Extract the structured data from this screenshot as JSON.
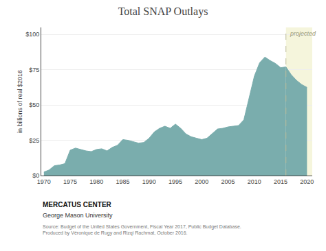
{
  "chart_data": {
    "type": "area",
    "title": "Total SNAP Outlays",
    "y_label": "in billions of real $2016",
    "x": [
      1970,
      1971,
      1972,
      1973,
      1974,
      1975,
      1976,
      1977,
      1978,
      1979,
      1980,
      1981,
      1982,
      1983,
      1984,
      1985,
      1986,
      1987,
      1988,
      1989,
      1990,
      1991,
      1992,
      1993,
      1994,
      1995,
      1996,
      1997,
      1998,
      1999,
      2000,
      2001,
      2002,
      2003,
      2004,
      2005,
      2006,
      2007,
      2008,
      2009,
      2010,
      2011,
      2012,
      2013,
      2014,
      2015,
      2016,
      2017,
      2018,
      2019,
      2020
    ],
    "values": [
      2.5,
      4.0,
      7.0,
      7.5,
      8.5,
      18.0,
      19.5,
      18.5,
      17.5,
      17.0,
      18.5,
      19.0,
      17.5,
      20.0,
      21.5,
      25.5,
      25.0,
      24.0,
      23.0,
      23.5,
      26.5,
      31.0,
      33.5,
      35.0,
      33.5,
      36.5,
      33.5,
      29.5,
      27.5,
      26.5,
      25.5,
      26.5,
      30.0,
      33.0,
      33.5,
      34.5,
      35.0,
      35.5,
      39.5,
      55.5,
      70.5,
      80.0,
      84.0,
      81.5,
      79.5,
      76.5,
      77.0,
      71.5,
      67.5,
      64.5,
      62.5
    ],
    "color": "#7aadad",
    "xlim": [
      1969.5,
      2021
    ],
    "ylim": [
      0,
      105
    ],
    "xticks": [
      1970,
      1975,
      1980,
      1985,
      1990,
      1995,
      2000,
      2005,
      2010,
      2015,
      2020
    ],
    "yticks": [
      {
        "value": 0,
        "label": "$0"
      },
      {
        "value": 25,
        "label": "$25"
      },
      {
        "value": 50,
        "label": "$50"
      },
      {
        "value": 75,
        "label": "$75"
      },
      {
        "value": 100,
        "label": "$100"
      }
    ],
    "grid": "y",
    "annotations": [
      {
        "text": "projected",
        "x": 2016,
        "color": "#f5f5dc"
      }
    ],
    "footer": [
      "MERCATUS CENTER",
      "George Mason University",
      "Source: Budget of the United States Government, Fiscal Year 2017, Public Budget Database.\nProduced by Véronique de Rugy and Rizqi Rachmat, October 2016."
    ]
  }
}
